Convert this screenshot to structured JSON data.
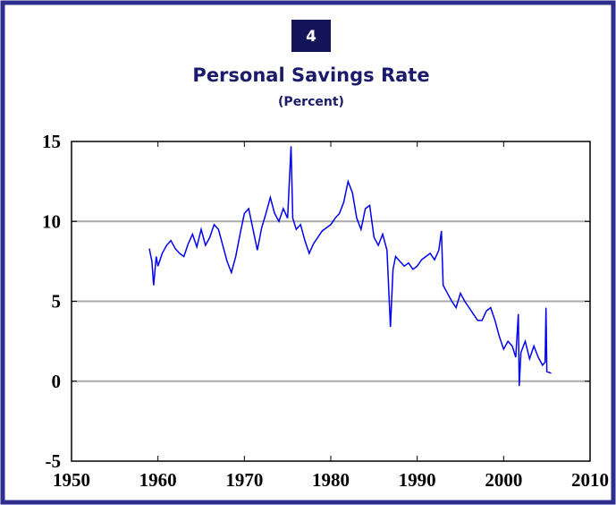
{
  "chart_data": {
    "type": "line",
    "badge": "4",
    "title": "Personal Savings Rate",
    "subtitle": "(Percent)",
    "x": [
      1959.0,
      1959.3,
      1959.5,
      1959.8,
      1960.0,
      1960.5,
      1961.0,
      1961.5,
      1962.0,
      1962.5,
      1963.0,
      1963.5,
      1964.0,
      1964.5,
      1965.0,
      1965.5,
      1966.0,
      1966.5,
      1967.0,
      1967.5,
      1968.0,
      1968.5,
      1969.0,
      1969.5,
      1970.0,
      1970.5,
      1971.0,
      1971.5,
      1972.0,
      1972.5,
      1973.0,
      1973.5,
      1974.0,
      1974.5,
      1975.0,
      1975.4,
      1975.6,
      1976.0,
      1976.5,
      1977.0,
      1977.5,
      1978.0,
      1978.5,
      1979.0,
      1979.5,
      1980.0,
      1980.5,
      1981.0,
      1981.5,
      1982.0,
      1982.5,
      1983.0,
      1983.5,
      1984.0,
      1984.5,
      1985.0,
      1985.5,
      1986.0,
      1986.5,
      1986.9,
      1987.2,
      1987.5,
      1988.0,
      1988.5,
      1989.0,
      1989.5,
      1990.0,
      1990.5,
      1991.0,
      1991.5,
      1992.0,
      1992.5,
      1992.8,
      1993.0,
      1993.5,
      1994.0,
      1994.5,
      1995.0,
      1995.5,
      1996.0,
      1996.5,
      1997.0,
      1997.5,
      1998.0,
      1998.5,
      1999.0,
      1999.5,
      2000.0,
      2000.5,
      2001.0,
      2001.4,
      2001.7,
      2001.8,
      2002.0,
      2002.5,
      2003.0,
      2003.5,
      2004.0,
      2004.5,
      2004.8,
      2004.9,
      2005.0,
      2005.5
    ],
    "series": [
      {
        "name": "Personal Savings Rate",
        "color": "#0000ee",
        "values": [
          8.3,
          7.5,
          6.0,
          7.8,
          7.2,
          8.0,
          8.5,
          8.8,
          8.3,
          8.0,
          7.8,
          8.6,
          9.2,
          8.4,
          9.5,
          8.5,
          9.0,
          9.8,
          9.5,
          8.5,
          7.5,
          6.8,
          7.8,
          9.2,
          10.5,
          10.8,
          9.5,
          8.2,
          9.6,
          10.5,
          11.5,
          10.5,
          10.0,
          10.8,
          10.2,
          14.7,
          10.2,
          9.5,
          9.8,
          8.8,
          8.0,
          8.6,
          9.0,
          9.4,
          9.6,
          9.8,
          10.2,
          10.5,
          11.2,
          12.5,
          11.8,
          10.2,
          9.5,
          10.8,
          11.0,
          9.0,
          8.5,
          9.2,
          8.2,
          3.4,
          7.0,
          7.8,
          7.5,
          7.2,
          7.4,
          7.0,
          7.2,
          7.6,
          7.8,
          8.0,
          7.6,
          8.2,
          9.4,
          6.0,
          5.5,
          5.0,
          4.6,
          5.5,
          5.0,
          4.6,
          4.2,
          3.8,
          3.8,
          4.4,
          4.6,
          3.8,
          2.8,
          2.0,
          2.5,
          2.2,
          1.5,
          4.2,
          -0.3,
          1.8,
          2.5,
          1.4,
          2.2,
          1.5,
          1.0,
          1.2,
          4.6,
          0.6,
          0.5
        ]
      }
    ],
    "xlim": [
      1950,
      2010
    ],
    "ylim": [
      -5,
      15
    ],
    "xticks": [
      1950,
      1960,
      1970,
      1980,
      1990,
      2000,
      2010
    ],
    "yticks": [
      -5,
      0,
      5,
      10,
      15
    ],
    "grid": true
  }
}
